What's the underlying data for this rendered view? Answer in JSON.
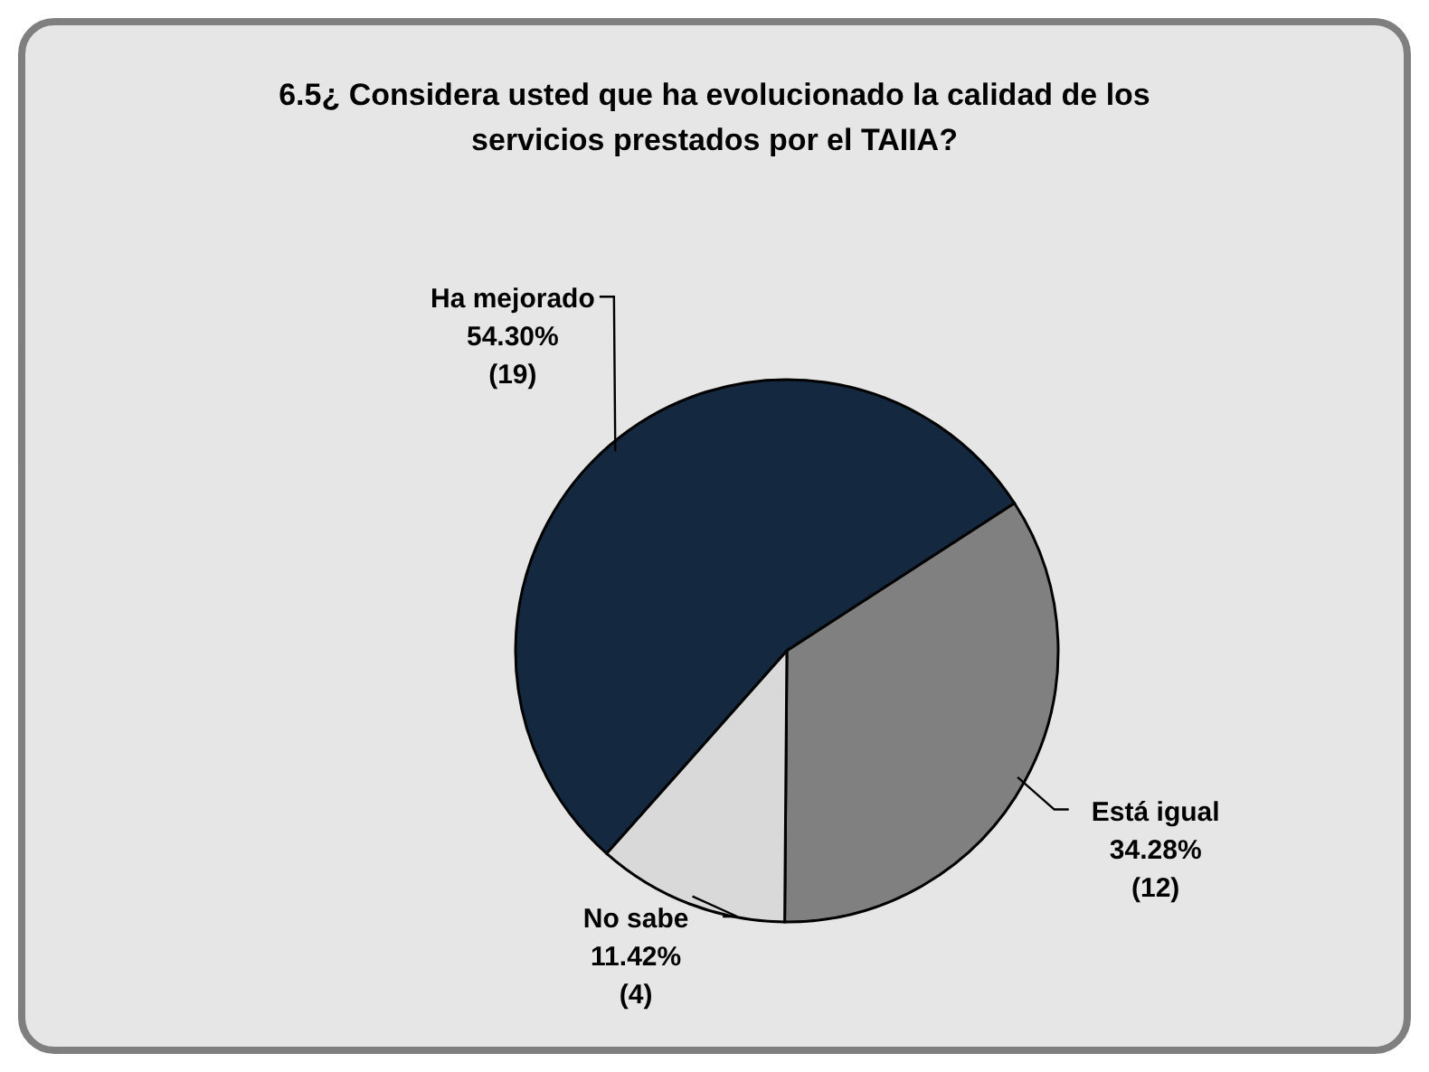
{
  "chart_data": {
    "type": "pie",
    "title": "6.5¿ Considera usted que ha evolucionado la calidad de los servicios prestados por el TAIIA?",
    "categories": [
      "Ha mejorado",
      "Está igual",
      "No sabe"
    ],
    "values": [
      19,
      12,
      4
    ],
    "value_labels": [
      "54.30%\n(19)",
      "34.28%\n(12)",
      "11.42%\n(4)"
    ],
    "colors": [
      "#142840",
      "#808080",
      "#d9d9d9"
    ]
  }
}
